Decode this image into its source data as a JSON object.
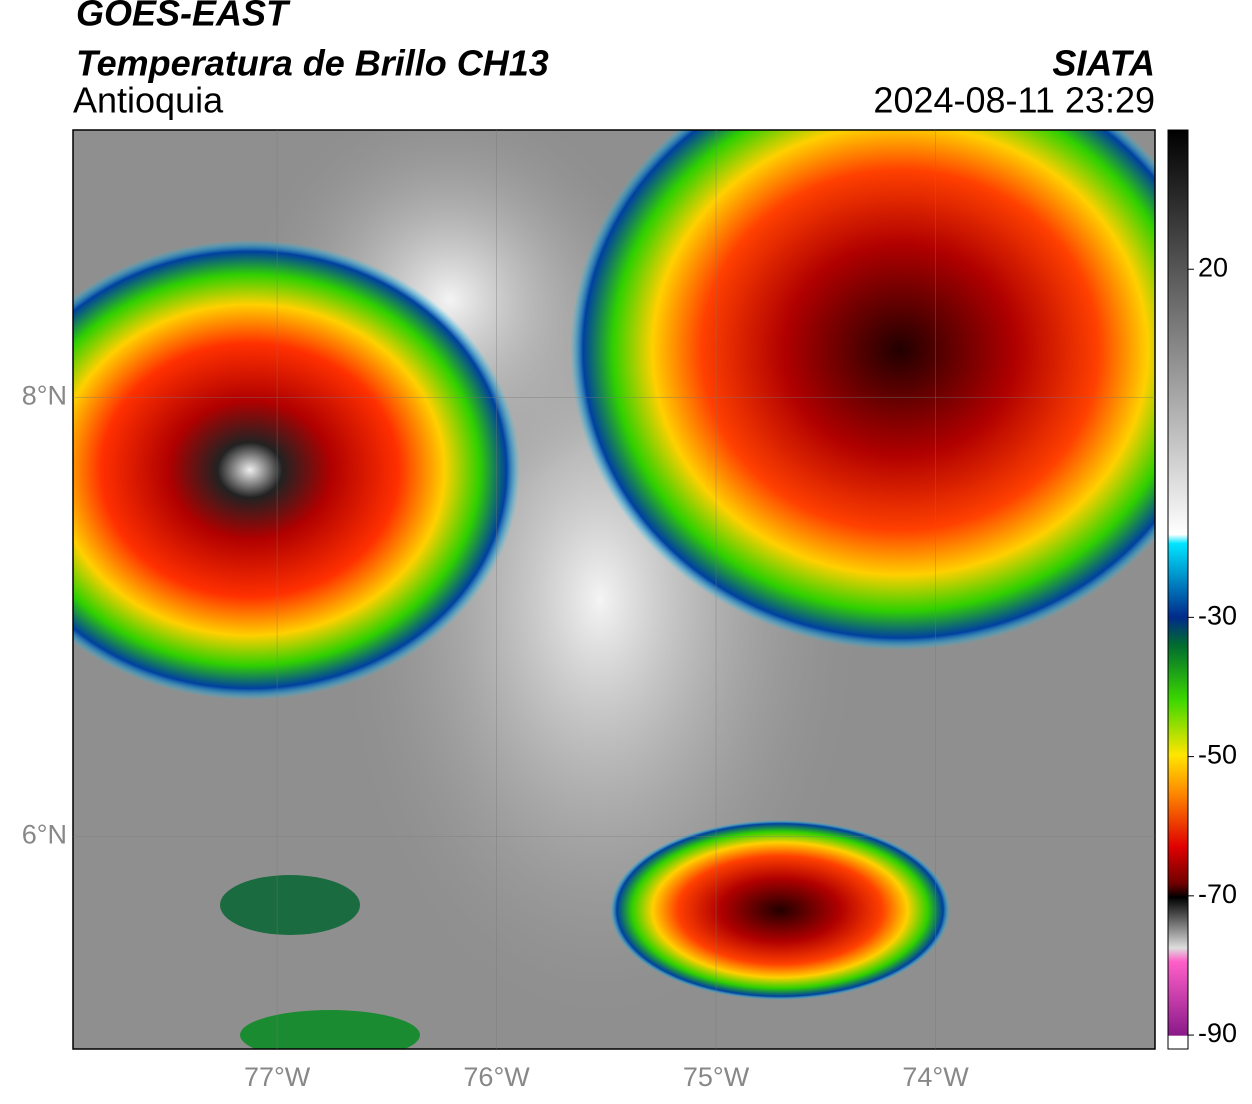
{
  "header": {
    "title": "GOES-EAST",
    "subtitle": "Temperatura de Brillo CH13",
    "region": "Antioquia",
    "source": "SIATA",
    "datetime": "2024-08-11 23:29"
  },
  "map": {
    "xlim": [
      -77.93,
      -73.0
    ],
    "ylim": [
      5.03,
      9.22
    ],
    "xticks": [
      {
        "value": -77,
        "label": "77°W"
      },
      {
        "value": -76,
        "label": "76°W"
      },
      {
        "value": -75,
        "label": "75°W"
      },
      {
        "value": -74,
        "label": "74°W"
      }
    ],
    "yticks": [
      {
        "value": 8,
        "label": "8°N"
      },
      {
        "value": 6,
        "label": "6°N"
      }
    ]
  },
  "colorbar": {
    "range": [
      -92,
      40
    ],
    "ticks": [
      20,
      -30,
      -50,
      -70,
      -90
    ]
  }
}
